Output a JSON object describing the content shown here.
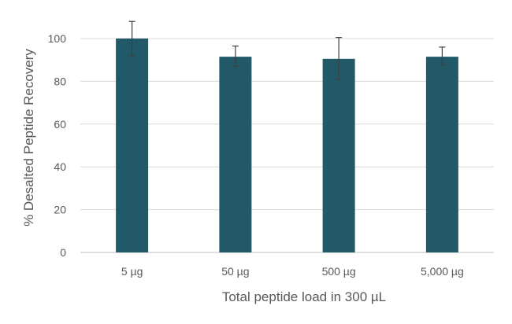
{
  "chart_data": {
    "type": "bar",
    "title": "",
    "xlabel": "Total peptide load in 300 µL",
    "ylabel": "% Desalted Peptide Recovery",
    "categories": [
      "5 µg",
      "50 µg",
      "500 µg",
      "5,000 µg"
    ],
    "values": [
      100,
      91.5,
      90.5,
      91.5
    ],
    "error_low": [
      92,
      87,
      81,
      87.5
    ],
    "error_high": [
      108,
      96.5,
      100.5,
      96
    ],
    "ylim": [
      0,
      100
    ],
    "yticks": [
      0,
      20,
      40,
      60,
      80,
      100
    ],
    "grid": true,
    "legend": "none",
    "colors": {
      "bar": "#215968",
      "gridline": "#d9d9d9",
      "axis": "#bfbfbf",
      "errorbar": "#404040",
      "text": "#595959"
    }
  }
}
